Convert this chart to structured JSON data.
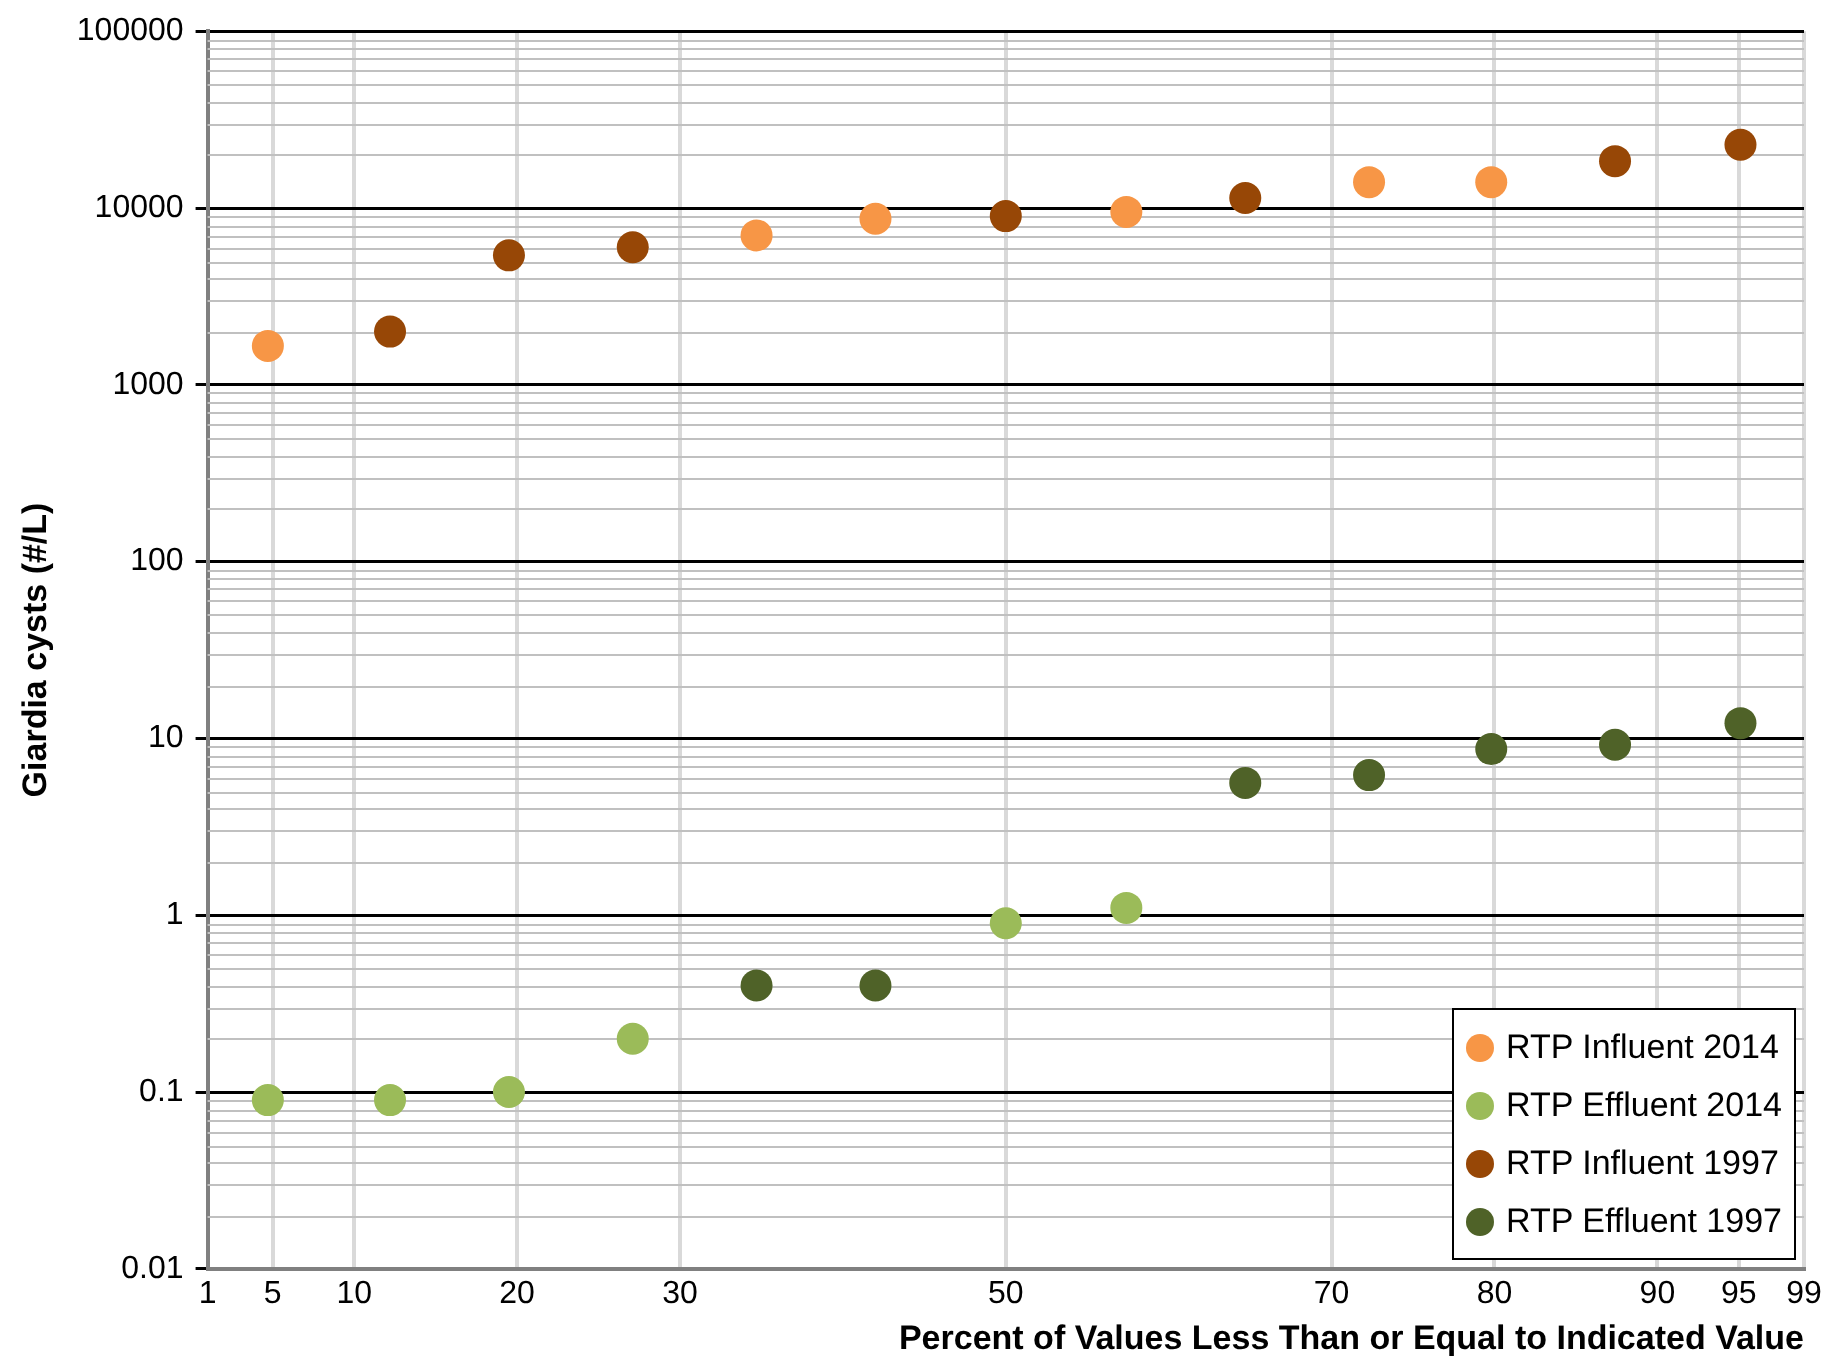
{
  "chart_data": {
    "type": "scatter",
    "xlabel": "Percent of Values Less Than or Equal to Indicated Value",
    "ylabel": "Giardia cysts (#/L)",
    "xlim": [
      1,
      99
    ],
    "xticks": [
      1,
      5,
      10,
      20,
      30,
      50,
      70,
      80,
      90,
      95,
      99
    ],
    "ylim": [
      0.01,
      100000
    ],
    "yticks": [
      0.01,
      0.1,
      1,
      10,
      100,
      1000,
      10000,
      100000
    ],
    "log": "y",
    "grid": true,
    "legend": "bottom right",
    "marker": "circle",
    "series": [
      {
        "name": "RTP Influent 2014",
        "color": "#f79646",
        "x": [
          4.7,
          34.7,
          42,
          57.4,
          72.3,
          79.8
        ],
        "values": [
          1660,
          7000,
          8700,
          9500,
          14000,
          14000
        ]
      },
      {
        "name": "RTP Effluent 2014",
        "color": "#9bbb59",
        "x": [
          4.7,
          12.2,
          19.5,
          27.1,
          50,
          57.4
        ],
        "values": [
          0.09,
          0.09,
          0.1,
          0.2,
          0.9,
          1.1
        ]
      },
      {
        "name": "RTP Influent 1997",
        "color": "#974706",
        "x": [
          12.2,
          19.5,
          27.1,
          50,
          64.7,
          87.4,
          95.1
        ],
        "values": [
          2000,
          5400,
          6000,
          9000,
          11400,
          18400,
          22800
        ]
      },
      {
        "name": "RTP Effluent 1997",
        "color": "#4f6228",
        "x": [
          34.7,
          42,
          64.7,
          72.3,
          79.8,
          87.4,
          95.1
        ],
        "values": [
          0.4,
          0.4,
          5.6,
          6.2,
          8.7,
          9.2,
          12.2
        ]
      }
    ]
  }
}
